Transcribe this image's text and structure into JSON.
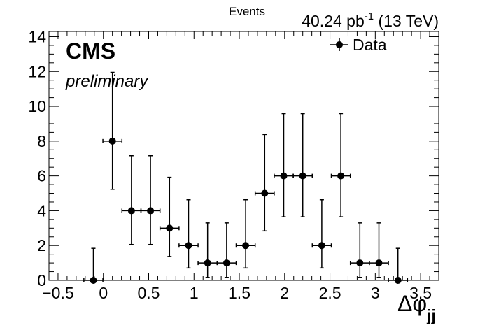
{
  "header": {
    "events_label": "Events",
    "lumi_main": "40.24 pb",
    "lumi_exp": "-1",
    "lumi_energy": " (13 TeV)"
  },
  "labels": {
    "cms": "CMS",
    "preliminary": "preliminary",
    "xlabel_main": "Δφ",
    "xlabel_sub": "jj"
  },
  "legend": {
    "data_label": "Data"
  },
  "chart_data": {
    "type": "scatter",
    "title": "",
    "xlabel": "Δφjj",
    "ylabel": "Events",
    "xlim": [
      -0.6,
      3.7
    ],
    "ylim": [
      0,
      14.3
    ],
    "x_ticks": [
      -0.5,
      0,
      0.5,
      1,
      1.5,
      2,
      2.5,
      3,
      3.5
    ],
    "x_tick_labels": [
      "−0.5",
      "0",
      "0.5",
      "1",
      "1.5",
      "2",
      "2.5",
      "3",
      "3.5"
    ],
    "y_ticks": [
      0,
      2,
      4,
      6,
      8,
      10,
      12,
      14
    ],
    "y_tick_labels": [
      "0",
      "2",
      "4",
      "6",
      "8",
      "10",
      "12",
      "14"
    ],
    "grid": false,
    "legend_position": "top-right",
    "bin_width": 0.21,
    "series": [
      {
        "name": "Data",
        "color": "#000000",
        "x": [
          -0.11,
          0.1,
          0.31,
          0.52,
          0.73,
          0.94,
          1.15,
          1.36,
          1.57,
          1.78,
          1.99,
          2.2,
          2.41,
          2.62,
          2.83,
          3.04,
          3.25
        ],
        "y": [
          0,
          8,
          4,
          4,
          3,
          2,
          1,
          1,
          2,
          5,
          6,
          6,
          2,
          6,
          1,
          1,
          0
        ],
        "err_low": [
          0,
          2.77,
          1.94,
          1.94,
          1.63,
          1.29,
          0.83,
          0.83,
          1.29,
          2.16,
          2.35,
          2.35,
          1.29,
          2.35,
          0.83,
          0.83,
          0
        ],
        "err_high": [
          1.84,
          3.95,
          3.16,
          3.16,
          2.92,
          2.63,
          2.3,
          2.3,
          2.63,
          3.38,
          3.58,
          3.58,
          2.63,
          3.58,
          2.3,
          2.3,
          1.84
        ]
      }
    ]
  }
}
